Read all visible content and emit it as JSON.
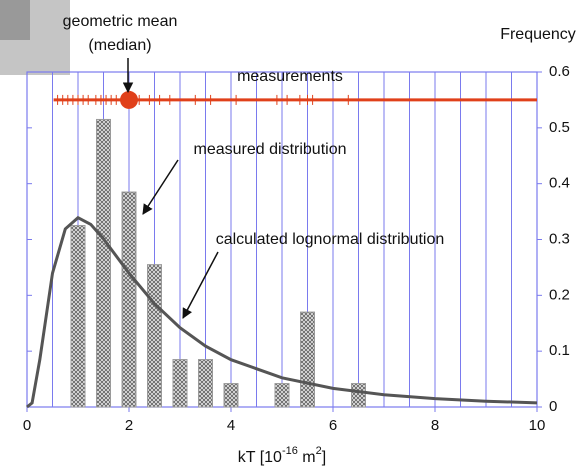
{
  "chart_data": {
    "type": "bar",
    "x": [
      1,
      1.5,
      2,
      2.5,
      3,
      3.5,
      4,
      5,
      5.5,
      6.5
    ],
    "values": [
      0.325,
      0.515,
      0.385,
      0.255,
      0.085,
      0.085,
      0.042,
      0.042,
      0.17,
      0.042
    ],
    "bar_color": "#9a9a9a",
    "curve": {
      "x": [
        0,
        0.1,
        0.25,
        0.5,
        0.75,
        1,
        1.25,
        1.5,
        2,
        2.5,
        3,
        3.5,
        4,
        5,
        6,
        7,
        8,
        9,
        10
      ],
      "y": [
        0,
        0.0074,
        0.0847,
        0.2396,
        0.319,
        0.339,
        0.327,
        0.301,
        0.2396,
        0.185,
        0.142,
        0.109,
        0.0847,
        0.0523,
        0.0334,
        0.0221,
        0.015,
        0.0104,
        0.0074
      ],
      "color": "#555555"
    },
    "measurements": [
      0.6,
      0.7,
      0.8,
      0.9,
      1.0,
      1.1,
      1.2,
      1.35,
      1.45,
      1.55,
      1.65,
      1.75,
      1.9,
      2.05,
      2.2,
      2.4,
      2.6,
      2.8,
      3.3,
      3.6,
      4.1,
      4.9,
      5.1,
      5.35,
      5.5,
      5.6,
      6.3
    ],
    "measurement_level": 0.55,
    "measurement_color": "#e0401a",
    "geometric_mean": 2,
    "xlim": [
      0,
      10
    ],
    "xticks": [
      0,
      2,
      4,
      6,
      8,
      10
    ],
    "x_gridlines": [
      0.5,
      1,
      1.5,
      2,
      2.5,
      3,
      3.5,
      4,
      4.5,
      5,
      5.5,
      6,
      6.5,
      7,
      7.5,
      8,
      8.5,
      9,
      9.5
    ],
    "ylim": [
      0,
      0.6
    ],
    "yticks": [
      0,
      0.1,
      0.2,
      0.3,
      0.4,
      0.5,
      0.6
    ],
    "grid_color": "#7a7aee",
    "ylabel": "Frequency",
    "xlabel": {
      "text": "kT [10",
      "sup1": "-16",
      "mid": " m",
      "sup2": "2",
      "end": "]"
    },
    "annotations": {
      "geometric_mean": "geometric mean",
      "median": "(median)",
      "measurements": "measurements",
      "measured": "measured distribution",
      "calculated": "calculated lognormal distribution"
    }
  }
}
